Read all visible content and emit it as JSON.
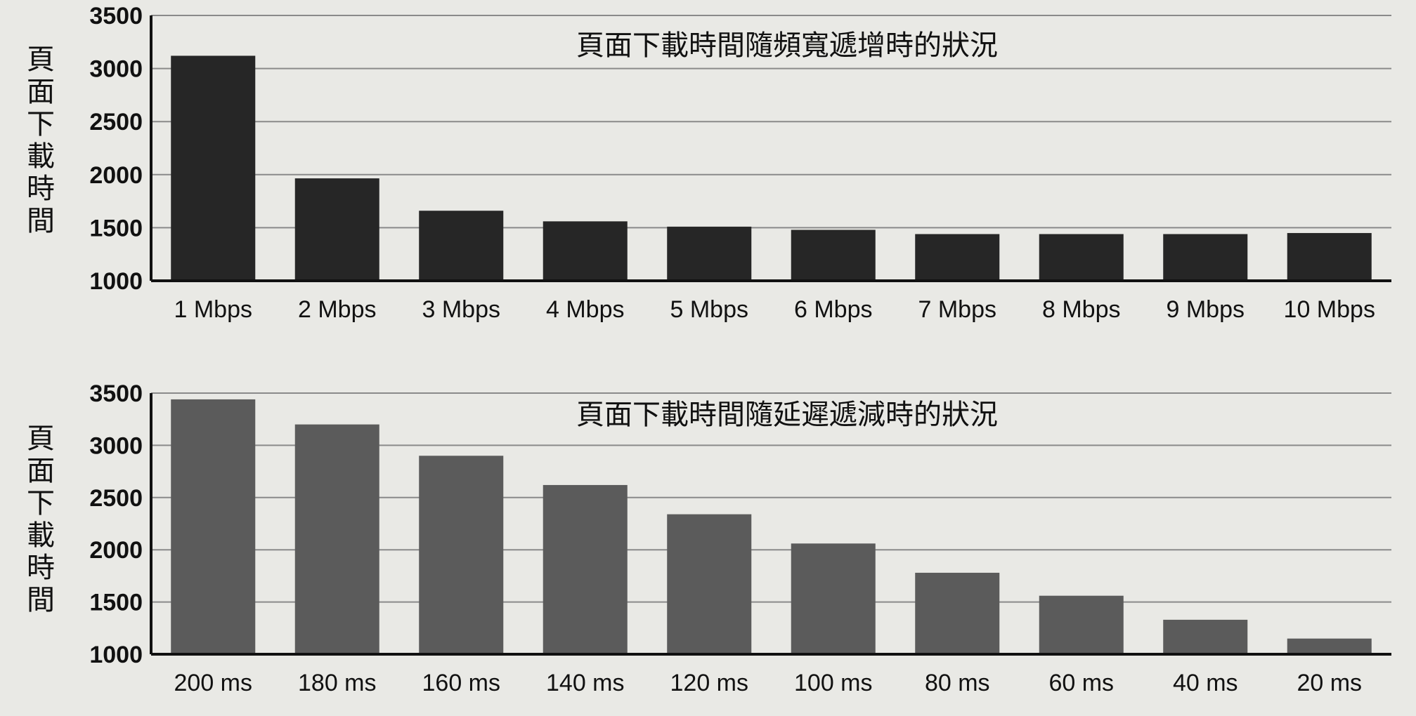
{
  "chart_data": [
    {
      "type": "bar",
      "title": "頁面下載時間隨頻寬遞增時的狀況",
      "ylabel": "頁面下載時間",
      "xlabel": "",
      "categories": [
        "1 Mbps",
        "2 Mbps",
        "3 Mbps",
        "4 Mbps",
        "5 Mbps",
        "6 Mbps",
        "7 Mbps",
        "8 Mbps",
        "9 Mbps",
        "10 Mbps"
      ],
      "values": [
        3120,
        1965,
        1660,
        1560,
        1510,
        1480,
        1440,
        1440,
        1440,
        1450
      ],
      "ylim": [
        1000,
        3500
      ],
      "yticks": [
        "1000",
        "1500",
        "2000",
        "2500",
        "3000",
        "3500"
      ],
      "grid": true,
      "bar_color": "#262626"
    },
    {
      "type": "bar",
      "title": "頁面下載時間隨延遲遞減時的狀況",
      "ylabel": "頁面下載時間",
      "xlabel": "",
      "categories": [
        "200 ms",
        "180 ms",
        "160 ms",
        "140 ms",
        "120 ms",
        "100 ms",
        "80 ms",
        "60 ms",
        "40 ms",
        "20 ms"
      ],
      "values": [
        3440,
        3200,
        2900,
        2620,
        2340,
        2060,
        1780,
        1560,
        1330,
        1150
      ],
      "ylim": [
        1000,
        3500
      ],
      "yticks": [
        "1000",
        "1500",
        "2000",
        "2500",
        "3000",
        "3500"
      ],
      "grid": true,
      "bar_color": "#5b5b5b"
    }
  ]
}
